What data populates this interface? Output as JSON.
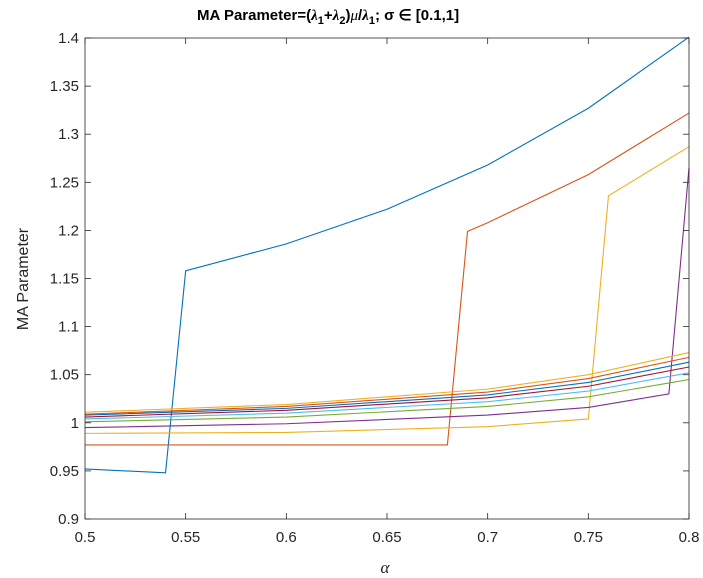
{
  "chart_data": {
    "type": "line",
    "title": "MA Parameter=(λ1+λ2)μ/λ1;  σ ∈ [0.1,1]",
    "title_parts": {
      "prefix": "MA Parameter=(",
      "lambda": "λ",
      "sub1": "1",
      "plus": "+",
      "sub2": "2",
      "close_paren": ")",
      "mu": "μ",
      "slash": "/",
      "sigma_part": ";  σ ∈ [0.1,1]"
    },
    "xlabel": "α",
    "ylabel": "MA Parameter",
    "xlim": [
      0.5,
      0.8
    ],
    "ylim": [
      0.9,
      1.4
    ],
    "xticks": [
      "0.5",
      "0.55",
      "0.6",
      "0.65",
      "0.7",
      "0.75",
      "0.8"
    ],
    "yticks": [
      "0.9",
      "0.95",
      "1",
      "1.05",
      "1.1",
      "1.15",
      "1.2",
      "1.25",
      "1.3",
      "1.35",
      "1.4"
    ],
    "grid": false,
    "box": true,
    "series": [
      {
        "color": "#0072BD",
        "points": [
          [
            0.5,
            0.952
          ],
          [
            0.54,
            0.948
          ],
          [
            0.55,
            1.158
          ],
          [
            0.6,
            1.186
          ],
          [
            0.65,
            1.222
          ],
          [
            0.7,
            1.268
          ],
          [
            0.75,
            1.327
          ],
          [
            0.8,
            1.401
          ]
        ]
      },
      {
        "color": "#D95319",
        "points": [
          [
            0.5,
            0.977
          ],
          [
            0.6,
            0.977
          ],
          [
            0.68,
            0.977
          ],
          [
            0.69,
            1.199
          ],
          [
            0.7,
            1.208
          ],
          [
            0.75,
            1.258
          ],
          [
            0.8,
            1.322
          ]
        ]
      },
      {
        "color": "#EDB120",
        "points": [
          [
            0.5,
            0.989
          ],
          [
            0.6,
            0.99
          ],
          [
            0.7,
            0.996
          ],
          [
            0.75,
            1.004
          ],
          [
            0.76,
            1.236
          ],
          [
            0.8,
            1.287
          ]
        ]
      },
      {
        "color": "#7E2F8E",
        "points": [
          [
            0.5,
            0.995
          ],
          [
            0.6,
            0.999
          ],
          [
            0.7,
            1.008
          ],
          [
            0.75,
            1.016
          ],
          [
            0.79,
            1.03
          ],
          [
            0.8,
            1.265
          ]
        ]
      },
      {
        "color": "#77AC30",
        "points": [
          [
            0.5,
            1.001
          ],
          [
            0.6,
            1.006
          ],
          [
            0.7,
            1.017
          ],
          [
            0.75,
            1.027
          ],
          [
            0.8,
            1.045
          ]
        ]
      },
      {
        "color": "#4DBEEE",
        "points": [
          [
            0.5,
            1.004
          ],
          [
            0.6,
            1.01
          ],
          [
            0.7,
            1.022
          ],
          [
            0.75,
            1.033
          ],
          [
            0.8,
            1.052
          ]
        ]
      },
      {
        "color": "#A2142F",
        "points": [
          [
            0.5,
            1.006
          ],
          [
            0.6,
            1.013
          ],
          [
            0.7,
            1.026
          ],
          [
            0.75,
            1.038
          ],
          [
            0.8,
            1.058
          ]
        ]
      },
      {
        "color": "#0072BD",
        "points": [
          [
            0.5,
            1.008
          ],
          [
            0.6,
            1.015
          ],
          [
            0.7,
            1.029
          ],
          [
            0.75,
            1.042
          ],
          [
            0.8,
            1.063
          ]
        ]
      },
      {
        "color": "#D95319",
        "points": [
          [
            0.5,
            1.009
          ],
          [
            0.6,
            1.017
          ],
          [
            0.7,
            1.032
          ],
          [
            0.75,
            1.046
          ],
          [
            0.8,
            1.068
          ]
        ]
      },
      {
        "color": "#EDB120",
        "points": [
          [
            0.5,
            1.011
          ],
          [
            0.6,
            1.019
          ],
          [
            0.7,
            1.035
          ],
          [
            0.75,
            1.05
          ],
          [
            0.8,
            1.073
          ]
        ]
      }
    ]
  }
}
